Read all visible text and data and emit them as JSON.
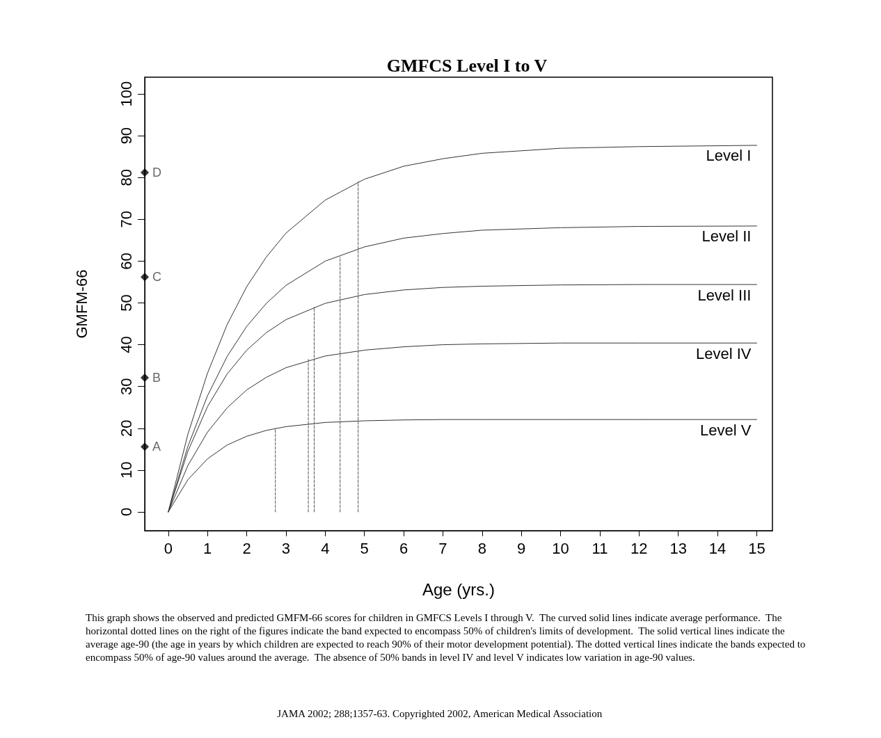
{
  "chart_data": {
    "type": "line",
    "title": "GMFCS Level I to V",
    "xlabel": "Age (yrs.)",
    "ylabel": "GMFM-66",
    "xlim": [
      -0.6,
      15.4
    ],
    "xticks": [
      0,
      1,
      2,
      3,
      4,
      5,
      6,
      7,
      8,
      9,
      10,
      11,
      12,
      13,
      14,
      15
    ],
    "ylim": [
      -4.5,
      104
    ],
    "yticks": [
      0,
      10,
      20,
      30,
      40,
      50,
      60,
      70,
      80,
      90,
      100
    ],
    "grid": false,
    "legend": false,
    "marker": "none",
    "line_style": "solid",
    "x": [
      0,
      0.5,
      1,
      1.5,
      2,
      2.5,
      3,
      4,
      5,
      6,
      7,
      8,
      10,
      12,
      15
    ],
    "series": [
      {
        "name": "Level I",
        "color": "#333333",
        "values": [
          0,
          18.6,
          33.2,
          44.8,
          53.9,
          61.0,
          66.7,
          74.6,
          79.6,
          82.7,
          84.5,
          85.8,
          87.0,
          87.4,
          87.7
        ]
      },
      {
        "name": "Level II",
        "color": "#333333",
        "values": [
          0,
          15.7,
          27.8,
          37.2,
          44.4,
          49.9,
          54.2,
          60.0,
          63.4,
          65.5,
          66.6,
          67.4,
          68.0,
          68.3,
          68.4
        ]
      },
      {
        "name": "Level III",
        "color": "#333333",
        "values": [
          0,
          14.5,
          25.2,
          33.0,
          38.7,
          42.9,
          46.0,
          49.9,
          52.0,
          53.1,
          53.7,
          54.0,
          54.3,
          54.4,
          54.4
        ]
      },
      {
        "name": "Level IV",
        "color": "#333333",
        "values": [
          0,
          11.1,
          19.1,
          24.9,
          29.2,
          32.2,
          34.5,
          37.3,
          38.7,
          39.5,
          40.0,
          40.2,
          40.4,
          40.4,
          40.4
        ]
      },
      {
        "name": "Level V",
        "color": "#333333",
        "values": [
          0,
          7.7,
          12.7,
          16.0,
          18.1,
          19.5,
          20.4,
          21.4,
          21.8,
          22.0,
          22.1,
          22.1,
          22.1,
          22.1,
          22.1
        ]
      },
      {
        "type": "line",
        "line_style": "dashed",
        "color": "#555555",
        "x": [
          2.73,
          2.73
        ],
        "values": [
          0,
          20
        ]
      },
      {
        "type": "line",
        "line_style": "dashed",
        "color": "#555555",
        "x": [
          3.57,
          3.57
        ],
        "values": [
          0,
          36.5
        ]
      },
      {
        "type": "line",
        "line_style": "dashed",
        "color": "#555555",
        "x": [
          3.72,
          3.72
        ],
        "values": [
          0,
          49
        ]
      },
      {
        "type": "line",
        "line_style": "dashed",
        "color": "#555555",
        "x": [
          4.38,
          4.38
        ],
        "values": [
          0,
          61
        ]
      },
      {
        "type": "line",
        "line_style": "dashed",
        "color": "#555555",
        "x": [
          4.84,
          4.84
        ],
        "values": [
          0,
          79
        ]
      },
      {
        "type": "scatter",
        "marker": "diamond",
        "color": "#000000",
        "x": [
          -0.6,
          -0.6,
          -0.6,
          -0.6
        ],
        "values": [
          15.6,
          32.1,
          56.2,
          81.2
        ],
        "value_labels": [
          "A",
          "B",
          "C",
          "D"
        ]
      }
    ],
    "annotations": [
      "This graph shows the observed and predicted GMFM-66 scores for children in GMFCS Levels I through V.  The curved solid lines indicate average performance.  The horizontal dotted lines on the right of the figures indicate the band expected to encompass 50% of children's limits of development.  The solid vertical lines indicate the average age-90 (the age in years by which children are expected to reach 90% of their motor development potential). The dotted vertical lines indicate the bands expected to encompass 50% of age-90 values around the average.  The absence of 50% bands in level IV and level V indicates low variation in age-90 values.",
      "JAMA 2002; 288;1357-63. Copyrighted 2002, American Medical Association"
    ]
  }
}
